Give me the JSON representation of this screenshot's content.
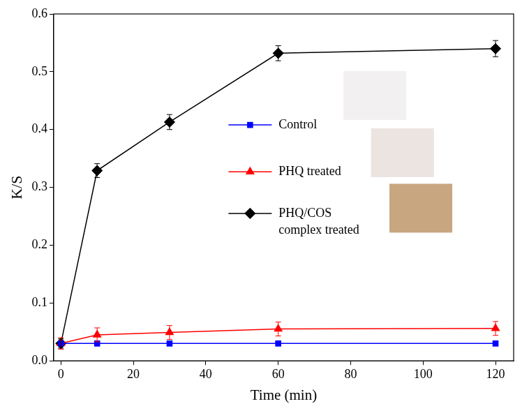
{
  "chart_data": {
    "type": "line",
    "x_label": "Time (min)",
    "y_label": "K/S",
    "x": [
      0,
      10,
      30,
      60,
      120
    ],
    "series": [
      {
        "name": "Control",
        "color": "#0000ff",
        "marker": "square",
        "values": [
          0.03,
          0.03,
          0.03,
          0.03,
          0.03
        ],
        "errors": [
          0.003,
          0.002,
          0.002,
          0.002,
          0.002
        ]
      },
      {
        "name": "PHQ treated",
        "color": "#ff0000",
        "marker": "triangle",
        "values": [
          0.03,
          0.045,
          0.049,
          0.055,
          0.056
        ],
        "errors": [
          0.01,
          0.012,
          0.012,
          0.012,
          0.012
        ]
      },
      {
        "name": "PHQ/COS complex treated",
        "color": "#000000",
        "marker": "diamond",
        "values": [
          0.03,
          0.329,
          0.413,
          0.532,
          0.54
        ],
        "errors": [
          0.008,
          0.012,
          0.013,
          0.013,
          0.014
        ]
      }
    ],
    "xlim": [
      -2,
      125
    ],
    "xticks": [
      0,
      20,
      40,
      60,
      80,
      100,
      120
    ],
    "ylim": [
      0,
      0.6
    ],
    "yticks": [
      {
        "value": 0,
        "label": "0.0"
      },
      0.1,
      0.2,
      0.3,
      0.4,
      0.5,
      0.6
    ],
    "grid": false,
    "legend": "right"
  }
}
